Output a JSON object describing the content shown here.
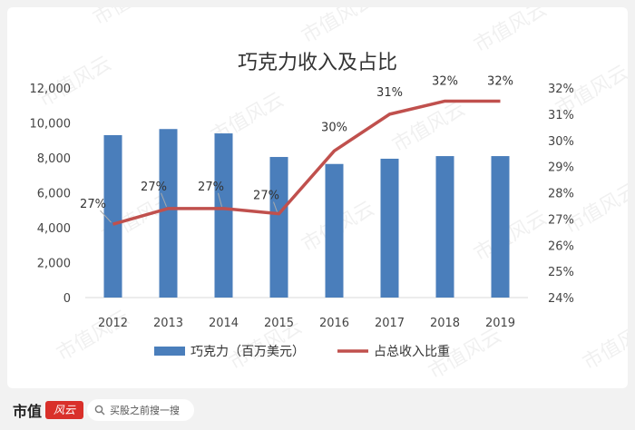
{
  "watermark": "市值风云",
  "chart_data": {
    "type": "bar+line",
    "title": "巧克力收入及占比",
    "categories": [
      "2012",
      "2013",
      "2014",
      "2015",
      "2016",
      "2017",
      "2018",
      "2019"
    ],
    "series": [
      {
        "name": "巧克力（百万美元）",
        "type": "bar",
        "axis": "left",
        "color": "#4a7ebb",
        "values": [
          9300,
          9650,
          9400,
          8050,
          7650,
          7950,
          8100,
          8100
        ]
      },
      {
        "name": "占总收入比重",
        "type": "line",
        "axis": "right",
        "color": "#c0504d",
        "values": [
          0.268,
          0.274,
          0.274,
          0.272,
          0.296,
          0.31,
          0.315,
          0.315
        ],
        "data_labels": [
          "27%",
          "27%",
          "27%",
          "27%",
          "30%",
          "31%",
          "32%",
          "32%"
        ]
      }
    ],
    "y_left": {
      "min": 0,
      "max": 12000,
      "step": 2000,
      "ticks": [
        "0",
        "2,000",
        "4,000",
        "6,000",
        "8,000",
        "10,000",
        "12,000"
      ]
    },
    "y_right": {
      "min": 0.24,
      "max": 0.32,
      "step": 0.01,
      "ticks": [
        "24%",
        "25%",
        "26%",
        "27%",
        "28%",
        "29%",
        "30%",
        "31%",
        "32%"
      ]
    },
    "legend_position": "bottom",
    "grid": false
  },
  "footer": {
    "brand": "市值",
    "brand_badge": "风云",
    "search_placeholder": "买股之前搜一搜"
  }
}
